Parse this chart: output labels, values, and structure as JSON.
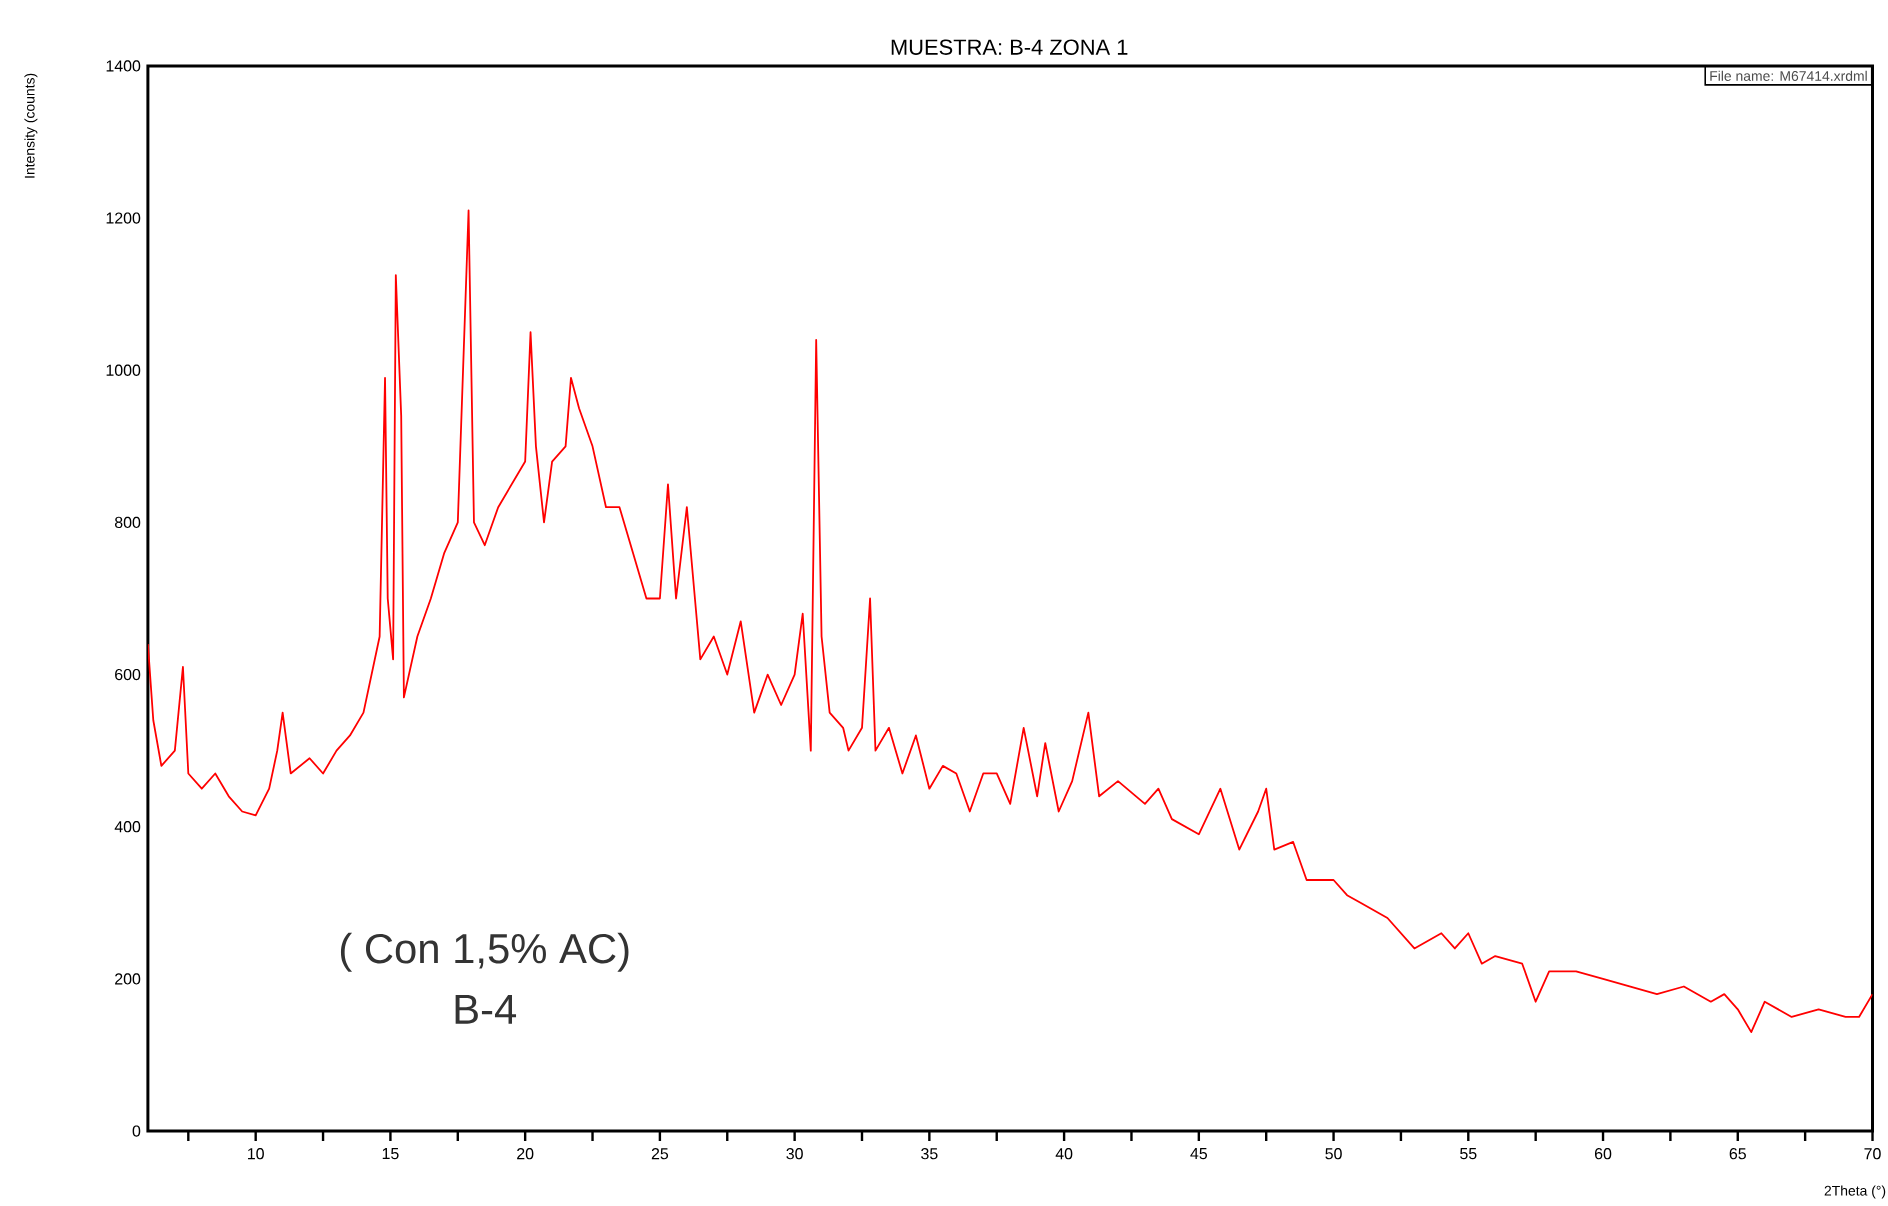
{
  "chart_data": {
    "type": "line",
    "title": "MUESTRA:  B-4 ZONA 1",
    "xlabel": "2Theta (°)",
    "ylabel": "Intensity (counts)",
    "annotations": [
      "File name: M67414.xrdml",
      "( Con 1,5% AC)",
      "B-4"
    ],
    "xlim": [
      6,
      70
    ],
    "ylim": [
      0,
      1400
    ],
    "xticks": [
      {
        "value": 7.5,
        "label": null
      },
      10,
      {
        "value": 12.5,
        "label": null
      },
      15,
      {
        "value": 17.5,
        "label": null
      },
      20,
      {
        "value": 22.5,
        "label": null
      },
      25,
      {
        "value": 27.5,
        "label": null
      },
      30,
      {
        "value": 32.5,
        "label": null
      },
      35,
      {
        "value": 37.5,
        "label": null
      },
      40,
      {
        "value": 42.5,
        "label": null
      },
      45,
      {
        "value": 47.5,
        "label": null
      },
      50,
      {
        "value": 52.5,
        "label": null
      },
      55,
      {
        "value": 57.5,
        "label": null
      },
      60,
      {
        "value": 62.5,
        "label": null
      },
      65,
      {
        "value": 67.5,
        "label": null
      },
      70
    ],
    "yticks": [
      0,
      200,
      400,
      600,
      800,
      1000,
      1200,
      1400
    ],
    "grid": false,
    "marker": "none",
    "line_style": "solid",
    "series": [
      {
        "color": "#ff0000",
        "x": [
          6,
          6.2,
          6.5,
          7,
          7.3,
          7.5,
          8,
          8.5,
          9,
          9.5,
          10,
          10.5,
          10.8,
          11,
          11.3,
          12,
          12.5,
          13,
          13.5,
          14,
          14.3,
          14.6,
          14.8,
          14.9,
          15.1,
          15.2,
          15.4,
          15.5,
          16,
          16.5,
          17,
          17.5,
          17.9,
          18.1,
          18.5,
          19,
          19.5,
          20,
          20.2,
          20.4,
          20.7,
          21,
          21.5,
          21.7,
          22,
          22.5,
          23,
          23.5,
          24,
          24.5,
          25,
          25.3,
          25.6,
          26,
          26.3,
          26.5,
          27,
          27.5,
          28,
          28.5,
          29,
          29.5,
          30,
          30.3,
          30.6,
          30.8,
          31,
          31.3,
          31.8,
          32,
          32.5,
          32.8,
          33,
          33.5,
          34,
          34.5,
          35,
          35.5,
          36,
          36.5,
          37,
          37.5,
          38,
          38.5,
          39,
          39.3,
          39.8,
          40.3,
          40.9,
          41.3,
          42,
          43,
          43.5,
          44,
          45,
          45.8,
          46.5,
          47.2,
          47.5,
          47.8,
          48.5,
          49,
          50,
          50.5,
          51,
          52,
          53,
          54,
          54.5,
          55,
          55.5,
          56,
          57,
          57.5,
          58,
          59,
          60,
          61,
          62,
          63,
          64,
          64.5,
          65,
          65.5,
          66,
          67,
          68,
          69,
          69.5,
          70
        ],
        "values": [
          640,
          540,
          480,
          500,
          610,
          470,
          450,
          470,
          440,
          420,
          415,
          450,
          500,
          550,
          470,
          490,
          470,
          500,
          520,
          550,
          600,
          650,
          990,
          700,
          620,
          1125,
          940,
          570,
          650,
          700,
          760,
          800,
          1210,
          800,
          770,
          820,
          850,
          880,
          1050,
          900,
          800,
          880,
          900,
          990,
          950,
          900,
          820,
          820,
          760,
          700,
          700,
          850,
          700,
          820,
          700,
          620,
          650,
          600,
          670,
          550,
          600,
          560,
          600,
          680,
          500,
          1040,
          650,
          550,
          530,
          500,
          530,
          700,
          500,
          530,
          470,
          520,
          450,
          480,
          470,
          420,
          470,
          470,
          430,
          530,
          440,
          510,
          420,
          460,
          550,
          440,
          460,
          430,
          450,
          410,
          390,
          450,
          370,
          420,
          450,
          370,
          380,
          330,
          330,
          310,
          300,
          280,
          240,
          260,
          240,
          260,
          220,
          230,
          220,
          170,
          210,
          210,
          200,
          190,
          180,
          190,
          170,
          180,
          160,
          130,
          170,
          150,
          160,
          150,
          150,
          180
        ]
      }
    ]
  }
}
